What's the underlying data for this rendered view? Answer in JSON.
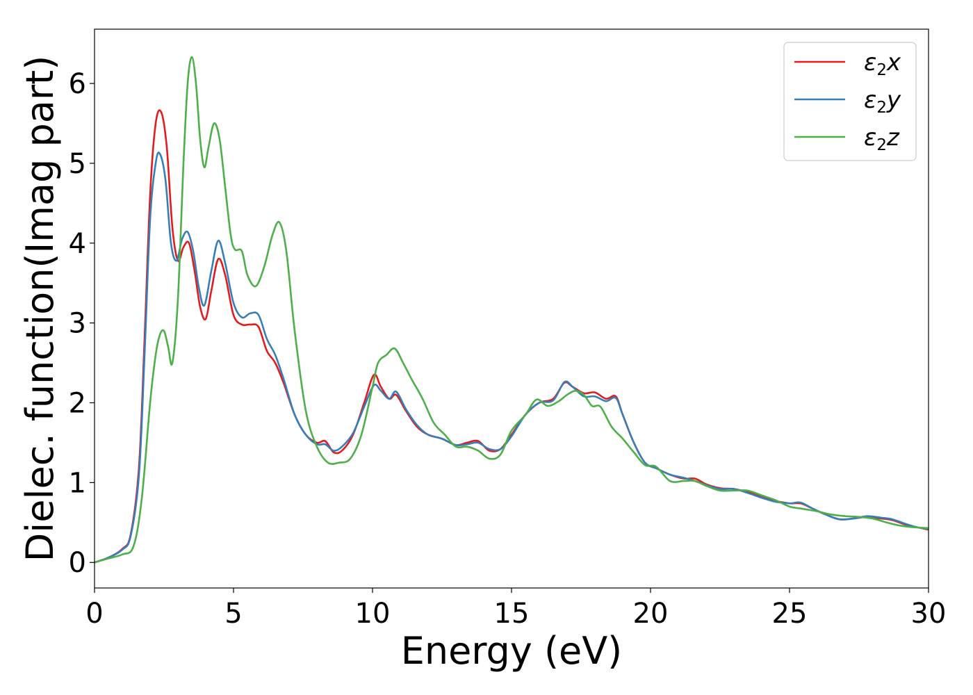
{
  "chart_data": {
    "type": "line",
    "title": "",
    "xlabel": "Energy (eV)",
    "ylabel": "Dielec. function(Imag part)",
    "xlim": [
      0,
      30
    ],
    "ylim": [
      -0.32,
      6.68
    ],
    "xticks": [
      0,
      5,
      10,
      15,
      20,
      25,
      30
    ],
    "yticks": [
      0,
      1,
      2,
      3,
      4,
      5,
      6
    ],
    "grid": false,
    "legend_position": "top-right",
    "series": [
      {
        "name": "ε2x",
        "name_base": "ε",
        "name_sub": "2",
        "name_var": "x",
        "color": "#e41a1c",
        "x": [
          0,
          0.5,
          1.0,
          1.3,
          1.6,
          1.8,
          2.0,
          2.2,
          2.4,
          2.6,
          2.8,
          3.0,
          3.2,
          3.4,
          3.6,
          3.8,
          4.0,
          4.2,
          4.45,
          4.7,
          5.0,
          5.3,
          5.6,
          5.9,
          6.2,
          6.5,
          6.8,
          7.2,
          7.6,
          8.0,
          8.3,
          8.6,
          8.9,
          9.3,
          9.7,
          10.05,
          10.3,
          10.6,
          10.85,
          11.2,
          11.6,
          12.0,
          12.5,
          13.0,
          13.4,
          13.8,
          14.2,
          14.6,
          15.0,
          15.5,
          16.0,
          16.5,
          16.9,
          17.2,
          17.6,
          18.0,
          18.4,
          18.75,
          19.0,
          19.4,
          19.8,
          20.2,
          20.7,
          21.2,
          21.6,
          22.0,
          22.5,
          23.0,
          23.5,
          24.0,
          24.5,
          25.0,
          25.4,
          25.8,
          26.3,
          26.8,
          27.3,
          27.8,
          28.3,
          28.7,
          29.2,
          29.6,
          30.0
        ],
        "values": [
          0,
          0.06,
          0.17,
          0.35,
          1.2,
          2.8,
          4.6,
          5.5,
          5.64,
          5.2,
          4.2,
          3.78,
          3.95,
          4.0,
          3.65,
          3.2,
          3.05,
          3.4,
          3.8,
          3.6,
          3.1,
          2.98,
          2.98,
          2.95,
          2.65,
          2.5,
          2.25,
          1.85,
          1.6,
          1.5,
          1.52,
          1.38,
          1.4,
          1.6,
          2.0,
          2.35,
          2.2,
          2.05,
          2.1,
          1.9,
          1.7,
          1.6,
          1.55,
          1.47,
          1.5,
          1.52,
          1.4,
          1.42,
          1.6,
          1.85,
          2.0,
          2.05,
          2.25,
          2.2,
          2.12,
          2.13,
          2.05,
          2.08,
          1.85,
          1.5,
          1.25,
          1.18,
          1.1,
          1.05,
          1.05,
          0.98,
          0.93,
          0.92,
          0.88,
          0.82,
          0.77,
          0.74,
          0.74,
          0.68,
          0.6,
          0.54,
          0.55,
          0.57,
          0.55,
          0.53,
          0.47,
          0.44,
          0.41
        ]
      },
      {
        "name": "ε2y",
        "name_base": "ε",
        "name_sub": "2",
        "name_var": "y",
        "color": "#377eb8",
        "x": [
          0,
          0.5,
          1.0,
          1.3,
          1.6,
          1.8,
          2.0,
          2.2,
          2.35,
          2.55,
          2.75,
          2.95,
          3.15,
          3.35,
          3.55,
          3.75,
          3.95,
          4.2,
          4.45,
          4.7,
          5.0,
          5.3,
          5.6,
          5.9,
          6.2,
          6.5,
          6.8,
          7.2,
          7.6,
          8.0,
          8.3,
          8.6,
          8.9,
          9.3,
          9.7,
          10.05,
          10.3,
          10.6,
          10.85,
          11.2,
          11.6,
          12.0,
          12.5,
          13.0,
          13.4,
          13.8,
          14.2,
          14.6,
          15.0,
          15.5,
          16.0,
          16.5,
          16.9,
          17.2,
          17.6,
          18.0,
          18.4,
          18.75,
          19.0,
          19.4,
          19.8,
          20.2,
          20.7,
          21.2,
          21.6,
          22.0,
          22.5,
          23.0,
          23.5,
          24.0,
          24.5,
          25.0,
          25.4,
          25.8,
          26.3,
          26.8,
          27.3,
          27.8,
          28.3,
          28.7,
          29.2,
          29.6,
          30.0
        ],
        "values": [
          0,
          0.06,
          0.16,
          0.33,
          1.1,
          2.6,
          4.3,
          5.0,
          5.12,
          4.8,
          4.0,
          3.78,
          4.05,
          4.14,
          3.9,
          3.45,
          3.22,
          3.65,
          4.03,
          3.75,
          3.25,
          3.07,
          3.12,
          3.1,
          2.8,
          2.6,
          2.3,
          1.85,
          1.6,
          1.48,
          1.48,
          1.4,
          1.45,
          1.62,
          1.95,
          2.22,
          2.15,
          2.05,
          2.14,
          1.92,
          1.72,
          1.6,
          1.55,
          1.47,
          1.48,
          1.5,
          1.42,
          1.42,
          1.58,
          1.85,
          2.0,
          2.03,
          2.26,
          2.2,
          2.08,
          2.08,
          2.02,
          2.06,
          1.85,
          1.5,
          1.25,
          1.18,
          1.1,
          1.06,
          1.02,
          0.97,
          0.92,
          0.92,
          0.87,
          0.81,
          0.76,
          0.74,
          0.75,
          0.68,
          0.6,
          0.54,
          0.55,
          0.58,
          0.56,
          0.54,
          0.48,
          0.44,
          0.42
        ]
      },
      {
        "name": "ε2z",
        "name_base": "ε",
        "name_sub": "2",
        "name_var": "z",
        "color": "#4daf4a",
        "x": [
          0,
          0.5,
          1.0,
          1.4,
          1.7,
          2.0,
          2.2,
          2.35,
          2.5,
          2.65,
          2.8,
          3.0,
          3.2,
          3.35,
          3.5,
          3.65,
          3.8,
          3.95,
          4.1,
          4.3,
          4.5,
          4.7,
          4.9,
          5.05,
          5.3,
          5.5,
          5.8,
          6.1,
          6.4,
          6.65,
          6.9,
          7.2,
          7.6,
          8.0,
          8.4,
          8.8,
          9.2,
          9.6,
          10.0,
          10.2,
          10.5,
          10.8,
          11.1,
          11.4,
          11.8,
          12.2,
          12.6,
          13.0,
          13.4,
          13.8,
          14.2,
          14.6,
          15.0,
          15.5,
          15.9,
          16.3,
          16.7,
          17.0,
          17.3,
          17.6,
          17.9,
          18.2,
          18.6,
          19.0,
          19.4,
          19.8,
          20.2,
          20.7,
          21.2,
          21.6,
          22.0,
          22.5,
          23.0,
          23.5,
          24.0,
          24.5,
          25.0,
          25.5,
          26.0,
          26.5,
          27.0,
          27.5,
          28.0,
          28.5,
          29.0,
          29.5,
          30.0
        ],
        "values": [
          0,
          0.05,
          0.1,
          0.2,
          0.8,
          2.0,
          2.6,
          2.85,
          2.9,
          2.7,
          2.5,
          3.3,
          5.0,
          6.0,
          6.33,
          6.0,
          5.3,
          4.95,
          5.2,
          5.5,
          5.3,
          4.7,
          4.1,
          3.92,
          3.9,
          3.6,
          3.46,
          3.7,
          4.1,
          4.26,
          3.9,
          2.9,
          1.9,
          1.45,
          1.25,
          1.25,
          1.3,
          1.6,
          2.2,
          2.5,
          2.6,
          2.68,
          2.5,
          2.3,
          2.05,
          1.75,
          1.6,
          1.45,
          1.45,
          1.4,
          1.3,
          1.35,
          1.65,
          1.85,
          2.04,
          1.96,
          2.02,
          2.1,
          2.15,
          2.1,
          1.96,
          1.95,
          1.7,
          1.55,
          1.38,
          1.22,
          1.2,
          1.02,
          1.02,
          1.02,
          0.96,
          0.9,
          0.9,
          0.9,
          0.84,
          0.78,
          0.7,
          0.67,
          0.64,
          0.6,
          0.58,
          0.57,
          0.55,
          0.5,
          0.46,
          0.44,
          0.43
        ]
      }
    ]
  }
}
